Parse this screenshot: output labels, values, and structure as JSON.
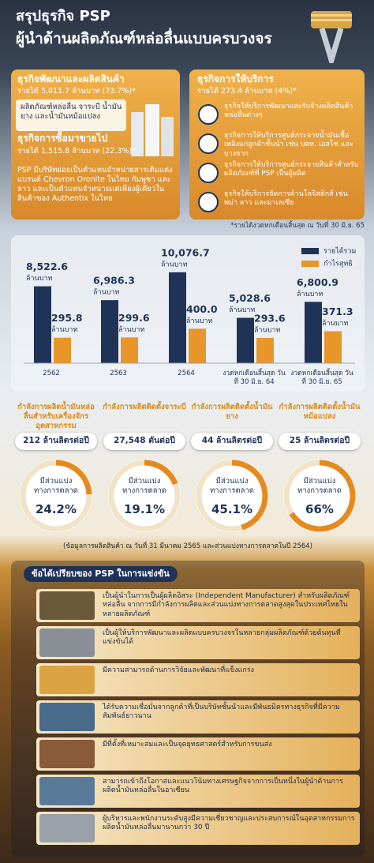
{
  "header": {
    "title": "สรุปธุรกิจ PSP",
    "subtitle": "ผู้นำด้านผลิตภัณฑ์หล่อลื่นแบบครบวงจร"
  },
  "business": {
    "manufacturing": {
      "title": "ธุรกิจพัฒนาและผลิตสินค้า",
      "revenue": "รายได้ 5,011.7 ล้านบาท (73.7%)*",
      "description": "ผลิตภัณฑ์หล่อลื่น จาระบี น้ำมันยาง และน้ำมันหม้อแปลง"
    },
    "trading": {
      "title": "ธุรกิจการซื้อมาขายไป",
      "revenue": "รายได้ 1,515.8 ล้านบาท (22.3%)*",
      "description": "PSP มีบริษัทย่อยเป็นตัวแทนจำหน่ายสารเติมแต่ง แบรนด์ Chevron Oronite ในไทย กัมพูชา และลาว และเป็นตัวแทนจำหน่ายแต่เพียงผู้เดียวในสินค้าของ Authentix ในไทย"
    },
    "services": {
      "title": "ธุรกิจการให้บริการ",
      "revenue": "รายได้ 273.4 ล้านบาท (4%)*",
      "items": [
        "ธุรกิจให้บริการพัฒนาและรับจ้างผลิตสินค้าหล่อลื่นต่างๆ",
        "ธุรกิจการให้บริการศูนย์กระจายน้ำมันเชื้อเพลิงแก่ลูกค้าชั้นนำ เช่น ปตท. เอสโซ่ และบางจาก",
        "ธุรกิจการให้บริการศูนย์กระจายสินค้าสำหรับผลิตภัณฑ์ที่ PSP เป็นผู้ผลิต",
        "ธุรกิจให้บริการจัดการด้านโลจิสติกส์ เช่น พม่า ลาว และมาเลเซีย"
      ]
    },
    "footnote": "*รายได้งวดหกเดือนสิ้นสุด ณ วันที่ 30 มิ.ย. 65"
  },
  "chart_data": {
    "type": "bar",
    "unit": "ล้านบาท",
    "categories": [
      "2562",
      "2563",
      "2564",
      "งวดหกเดือนสิ้นสุด วันที่ 30 มิ.ย. 64",
      "งวดหกเดือนสิ้นสุด วันที่ 30 มิ.ย. 65"
    ],
    "ylim": [
      0,
      10500
    ],
    "y2lim": [
      0,
      1100
    ],
    "legend": "top-right",
    "series": [
      {
        "name": "รายได้รวม",
        "color": "#1f3358",
        "values": [
          8522.6,
          6986.3,
          10076.7,
          5028.6,
          6800.9
        ],
        "value_labels": [
          "8,522.6",
          "6,986.3",
          "10,076.7",
          "5,028.6",
          "6,800.9"
        ]
      },
      {
        "name": "กำไรสุทธิ",
        "color": "#e8962a",
        "axis": "y2",
        "values": [
          295.8,
          299.6,
          400.0,
          293.6,
          371.3
        ],
        "value_labels": [
          "295.8",
          "299.6",
          "400.0",
          "293.6",
          "371.3"
        ]
      }
    ]
  },
  "capacity": {
    "share_caption": "มีส่วนแบ่งทางการตลาด",
    "items": [
      {
        "title": "กำลังการผลิตน้ำมันหล่อลื่นสำหรับเครื่องจักรอุตสาหกรรม",
        "capacity": "212 ล้านลิตรต่อปี",
        "share": {
          "value": 24.2,
          "label": "24.2%"
        }
      },
      {
        "title": "กำลังการผลิตติดตั้งจาระบี",
        "capacity": "27,548 ตันต่อปี",
        "share": {
          "value": 19.1,
          "label": "19.1%"
        }
      },
      {
        "title": "กำลังการผลิตติดตั้งน้ำมันยาง",
        "capacity": "44 ล้านลิตรต่อปี",
        "share": {
          "value": 45.1,
          "label": "45.1%"
        }
      },
      {
        "title": "กำลังการผลิตติดตั้งน้ำมันหม้อแปลง",
        "capacity": "25 ล้านลิตรต่อปี",
        "share": {
          "value": 66,
          "label": "66%"
        }
      }
    ],
    "note": "(ข้อมูลการผลิตสินค้า ณ วันที่ 31 มีนาคม 2565 และส่วนแบ่งทางการตลาดในปี 2564)"
  },
  "advantages": {
    "title": "ข้อได้เปรียบของ PSP ในการแข่งขัน",
    "items": [
      "เป็นผู้นำในการเป็นผู้ผลิตอิสระ (Independent Manufacturer) สำหรับผลิตภัณฑ์หล่อลื่น จากการมีกำลังการผลิตและส่วนแบ่งทางการตลาดสูงสุดในประเทศไทยในหลายผลิตภัณฑ์",
      "เป็นผู้ให้บริการพัฒนาและผลิตแบบครบวงจรในหลายกลุ่มผลิตภัณฑ์ด้วยต้นทุนที่แข่งขันได้",
      "มีความสามารถด้านการวิจัยและพัฒนาที่แข็งแกร่ง",
      "ได้รับความเชื่อมั่นจากลูกค้าที่เป็นบริษัทชั้นนำและมีพันธมิตรทางธุรกิจที่มีความสัมพันธ์ยาวนาน",
      "มีที่ตั้งที่เหมาะสมและเป็นจุดยุทธศาสตร์สำหรับการขนส่ง",
      "สามารถเข้าถึงโอกาสและแนวโน้มทางเศรษฐกิจจากการเป็นหนึ่งในผู้นำด้านการผลิตน้ำมันหล่อลื่นในอาเซียน",
      "ผู้บริหารและพนักงานระดับสูงมีความเชี่ยวชาญและประสบการณ์ในอุตสาหกรรมการผลิตน้ำมันหล่อลื่นมานานกว่า 30 ปี"
    ]
  }
}
